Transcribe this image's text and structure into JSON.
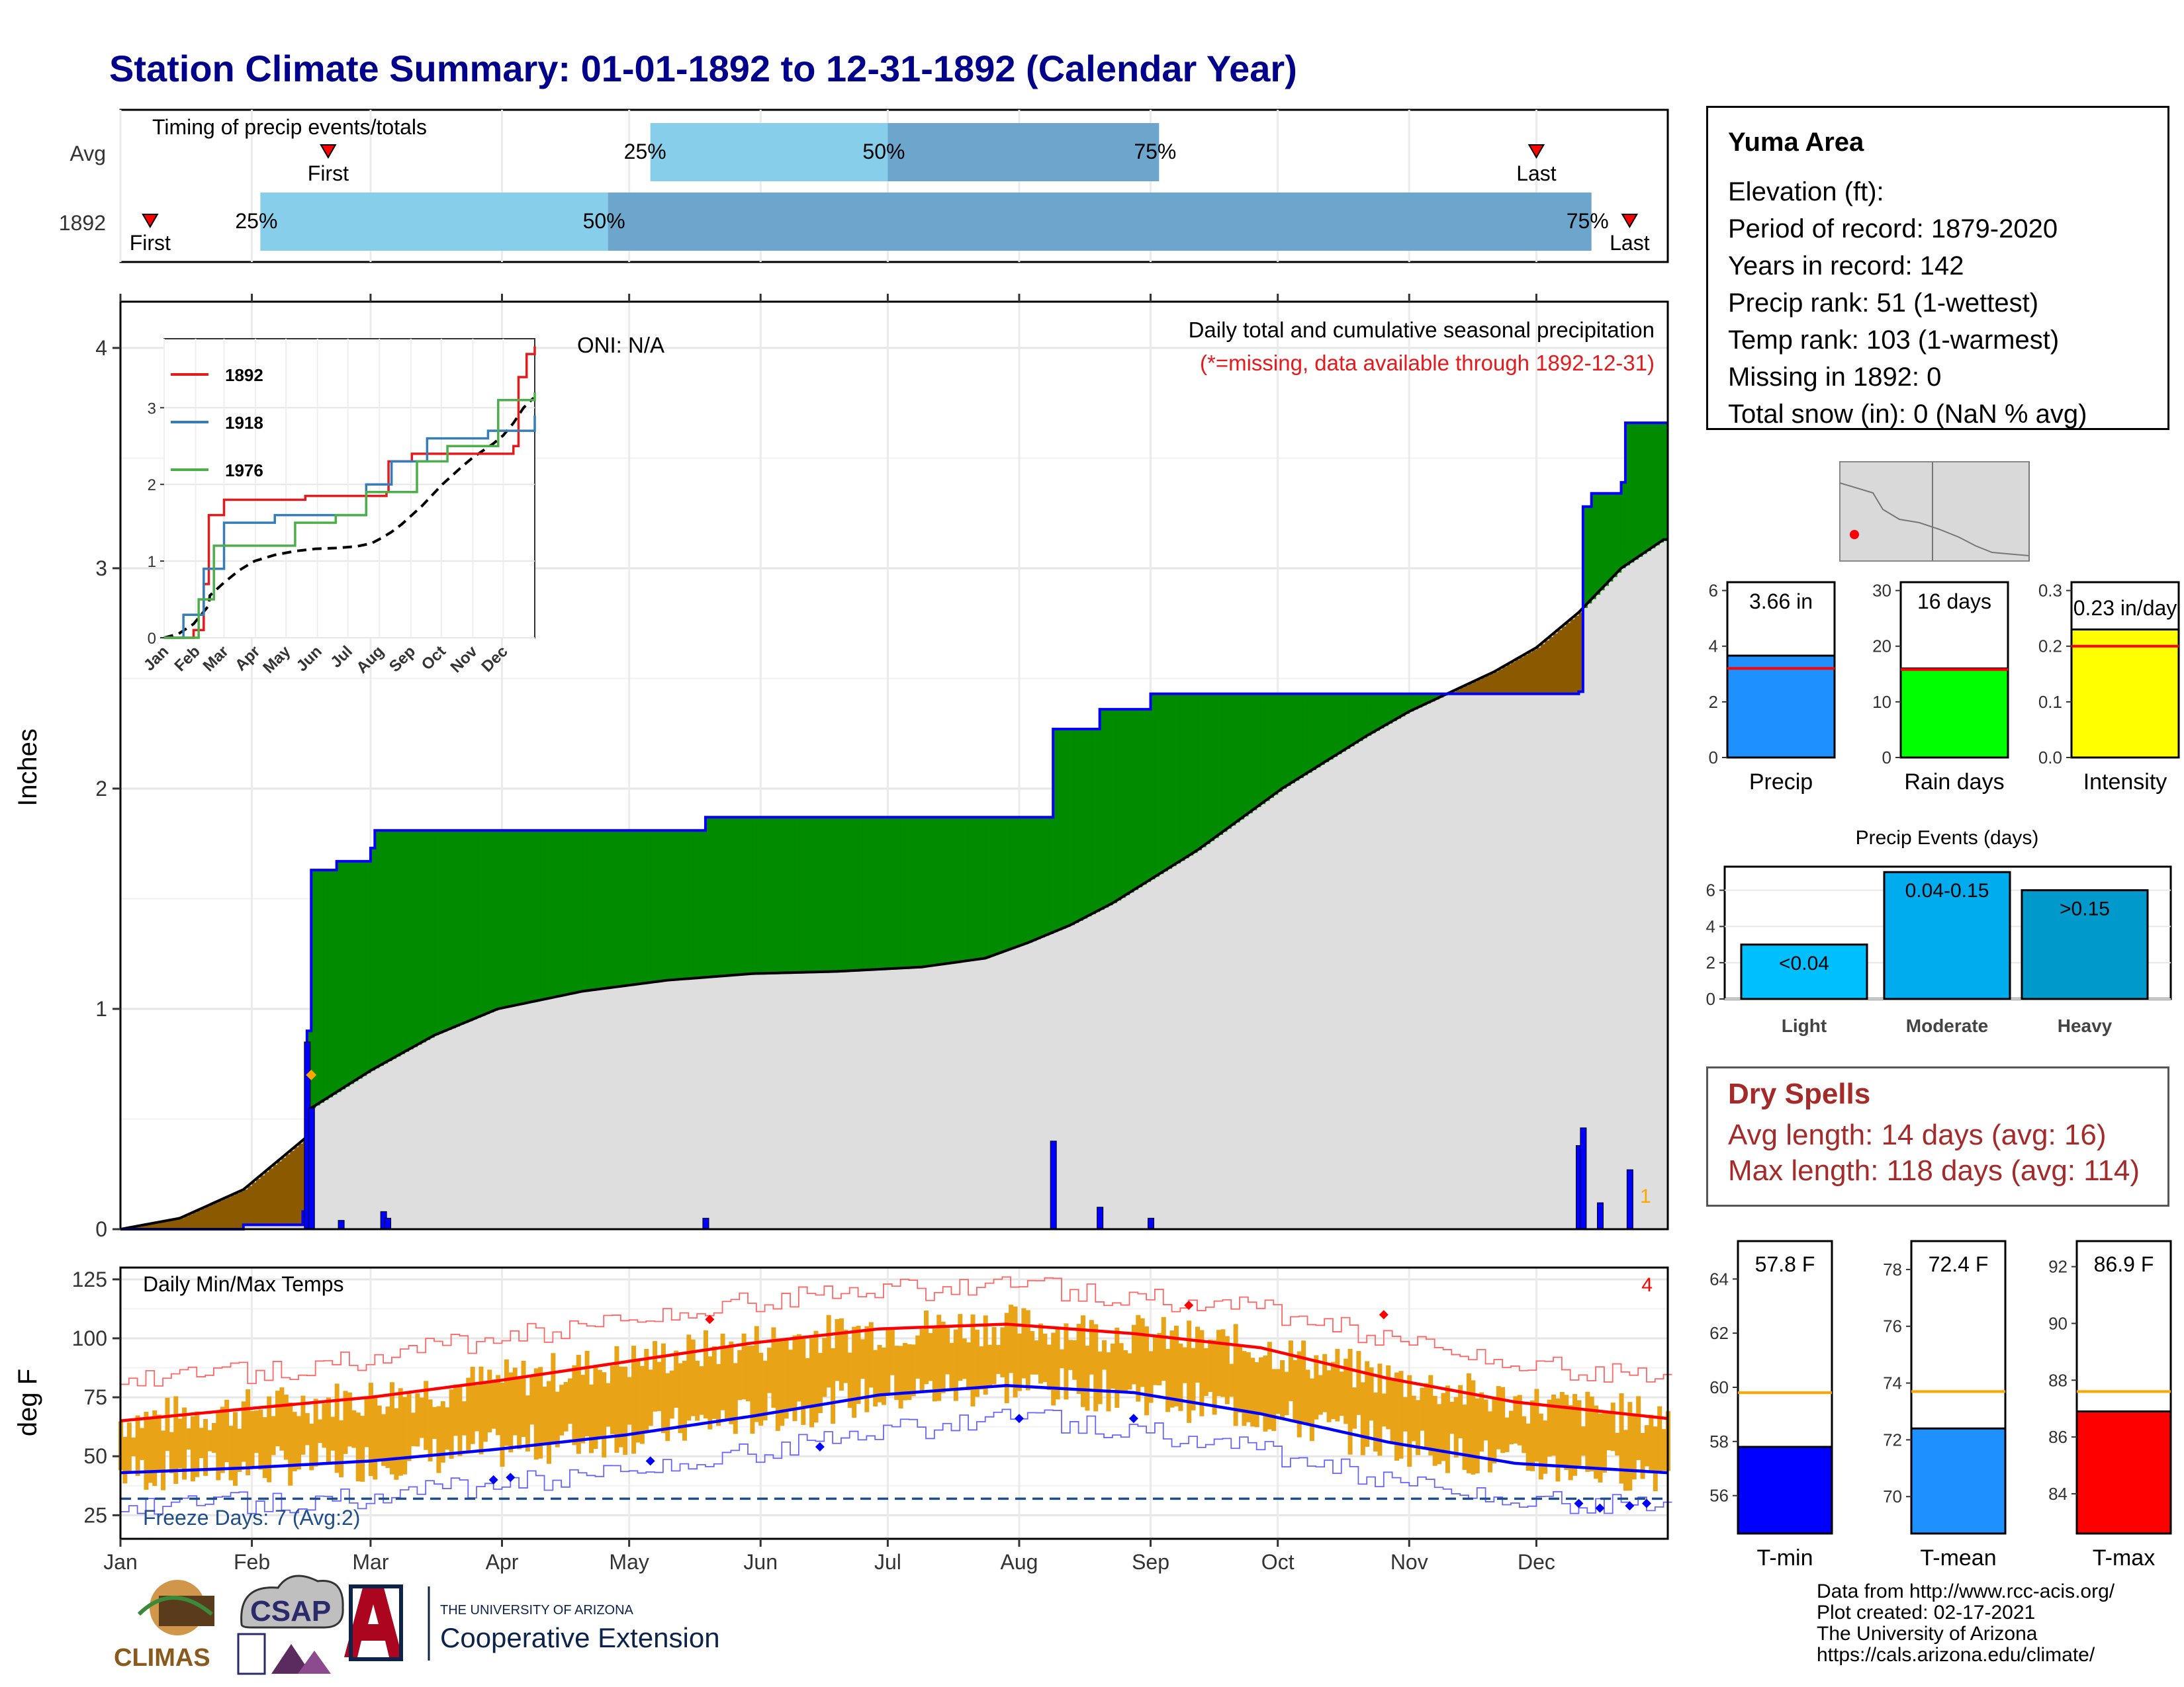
{
  "title": "Station Climate Summary: 01-01-1892 to 12-31-1892 (Calendar Year)",
  "months": [
    "Jan",
    "Feb",
    "Mar",
    "Apr",
    "May",
    "Jun",
    "Jul",
    "Aug",
    "Sep",
    "Oct",
    "Nov",
    "Dec"
  ],
  "timing": {
    "title": "Timing of precip events/totals",
    "rows": [
      {
        "label": "Avg",
        "first_day": 50,
        "p25_day": 126,
        "p50_day": 182,
        "p75_day": 246,
        "last_day": 335,
        "first_text": "First",
        "last_text": "Last",
        "p25_text": "25%",
        "p50_text": "50%",
        "p75_text": "75%"
      },
      {
        "label": "1892",
        "first_day": 8,
        "p25_day": 34,
        "p50_day": 116,
        "p75_day": 348,
        "last_day": 357,
        "first_text": "First",
        "last_text": "Last",
        "p25_text": "25%",
        "p50_text": "50%",
        "p75_text": "75%"
      }
    ]
  },
  "precip_panel": {
    "ylabel": "Inches",
    "yticks": [
      "0",
      "1",
      "2",
      "3",
      "4"
    ],
    "note1": "Daily total and cumulative seasonal precipitation",
    "note2": "(*=missing, data available through 1892-12-31)",
    "oni": "ONI: N/A",
    "corner_label": "1"
  },
  "inset": {
    "yticks": [
      "0",
      "1",
      "2",
      "3"
    ],
    "xticks": [
      "Jan",
      "Feb",
      "Mar",
      "Apr",
      "May",
      "Jun",
      "Jul",
      "Aug",
      "Sep",
      "Oct",
      "Nov",
      "Dec"
    ],
    "legend": [
      {
        "name": "1892",
        "color": "#e41a1c"
      },
      {
        "name": "1918",
        "color": "#377eb8"
      },
      {
        "name": "1976",
        "color": "#4daf4a"
      }
    ]
  },
  "temp_panel": {
    "ylabel": "deg F",
    "label": "Daily Min/Max Temps",
    "yticks": [
      "25",
      "50",
      "75",
      "100",
      "125"
    ],
    "freeze_text": "Freeze Days: 7 (Avg:2)",
    "corner_label": "4"
  },
  "info": {
    "station": "Yuma Area",
    "lines": [
      "Elevation (ft):",
      "Period of record: 1879-2020",
      "Years in record: 142",
      "Precip rank: 51 (1-wettest)",
      "Temp rank: 103 (1-warmest)",
      "Missing in 1892: 0",
      "Total snow (in): 0 (NaN % avg)"
    ]
  },
  "summary_bars": [
    {
      "name": "Precip",
      "value_text": "3.66 in",
      "value": 3.66,
      "avg": 3.2,
      "ymax": 6.3,
      "yticks": [
        "0",
        "2",
        "4",
        "6"
      ],
      "tick_vals": [
        0,
        2,
        4,
        6
      ],
      "color": "#1e90ff"
    },
    {
      "name": "Rain days",
      "value_text": "16 days",
      "value": 16,
      "avg": 15.8,
      "ymax": 31.5,
      "yticks": [
        "0",
        "10",
        "20",
        "30"
      ],
      "tick_vals": [
        0,
        10,
        20,
        30
      ],
      "color": "#00ff00"
    },
    {
      "name": "Intensity",
      "value_text": "0.23 in/day",
      "value": 0.23,
      "avg": 0.2,
      "ymax": 0.315,
      "yticks": [
        "0.0",
        "0.1",
        "0.2",
        "0.3"
      ],
      "tick_vals": [
        0,
        0.1,
        0.2,
        0.3
      ],
      "color": "#ffff00"
    }
  ],
  "events": {
    "title": "Precip Events (days)",
    "yticks": [
      "0",
      "2",
      "4",
      "6"
    ],
    "bars": [
      {
        "name": "Light",
        "range": "<0.04",
        "value": 3,
        "color": "#00bfff"
      },
      {
        "name": "Moderate",
        "range": "0.04-0.15",
        "value": 7,
        "color": "#00acee"
      },
      {
        "name": "Heavy",
        "range": ">0.15",
        "value": 6,
        "color": "#0099cc"
      }
    ]
  },
  "dry_spells": {
    "title": "Dry Spells",
    "avg_line": "Avg length: 14 days (avg: 16)",
    "max_line": "Max length: 118 days (avg: 114)"
  },
  "temp_bars": [
    {
      "name": "T-min",
      "value_text": "57.8 F",
      "value": 57.8,
      "avg": 59.8,
      "ymin": 54.6,
      "ymax": 65.4,
      "yticks": [
        "56",
        "58",
        "60",
        "62",
        "64"
      ],
      "tick_vals": [
        56,
        58,
        60,
        62,
        64
      ],
      "color": "#0000ff"
    },
    {
      "name": "T-mean",
      "value_text": "72.4 F",
      "value": 72.4,
      "avg": 73.7,
      "ymin": 68.7,
      "ymax": 79.0,
      "yticks": [
        "70",
        "72",
        "74",
        "76",
        "78"
      ],
      "tick_vals": [
        70,
        72,
        74,
        76,
        78
      ],
      "color": "#1e90ff"
    },
    {
      "name": "T-max",
      "value_text": "86.9 F",
      "value": 86.9,
      "avg": 87.6,
      "ymin": 82.6,
      "ymax": 92.9,
      "yticks": [
        "84",
        "86",
        "88",
        "90",
        "92"
      ],
      "tick_vals": [
        84,
        86,
        88,
        90,
        92
      ],
      "color": "#ff0000"
    }
  ],
  "credits": [
    "Data from http://www.rcc-acis.org/",
    "Plot created: 02-17-2021",
    "The University of Arizona",
    "https://cals.arizona.edu/climate/"
  ],
  "logos": {
    "climas": "CLIMAS",
    "csap": "CSAP",
    "ua_line1": "THE UNIVERSITY OF ARIZONA",
    "ua_line2": "Cooperative Extension"
  },
  "chart_data": {
    "type": "area",
    "title": "Station Climate Summary: 01-01-1892 to 12-31-1892 (Calendar Year)",
    "ylabel": "Inches",
    "ylim": [
      0,
      4
    ],
    "cumulative_1892": [
      [
        1,
        0
      ],
      [
        30,
        0.02
      ],
      [
        44,
        0.08
      ],
      [
        45,
        0.9
      ],
      [
        46,
        1.63
      ],
      [
        52,
        1.67
      ],
      [
        60,
        1.73
      ],
      [
        61,
        1.81
      ],
      [
        138,
        1.81
      ],
      [
        139,
        1.87
      ],
      [
        220,
        1.87
      ],
      [
        221,
        2.27
      ],
      [
        231,
        2.27
      ],
      [
        232,
        2.36
      ],
      [
        243,
        2.36
      ],
      [
        244,
        2.43
      ],
      [
        344,
        2.43
      ],
      [
        345,
        2.44
      ],
      [
        346,
        3.28
      ],
      [
        348,
        3.34
      ],
      [
        355,
        3.39
      ],
      [
        356,
        3.66
      ],
      [
        366,
        3.66
      ]
    ],
    "cumulative_avg": [
      [
        1,
        0
      ],
      [
        15,
        0.05
      ],
      [
        30,
        0.18
      ],
      [
        45,
        0.42
      ],
      [
        46,
        0.55
      ],
      [
        60,
        0.72
      ],
      [
        75,
        0.88
      ],
      [
        90,
        1.0
      ],
      [
        110,
        1.08
      ],
      [
        130,
        1.13
      ],
      [
        150,
        1.16
      ],
      [
        170,
        1.17
      ],
      [
        190,
        1.19
      ],
      [
        205,
        1.23
      ],
      [
        215,
        1.3
      ],
      [
        225,
        1.38
      ],
      [
        235,
        1.48
      ],
      [
        245,
        1.6
      ],
      [
        255,
        1.72
      ],
      [
        265,
        1.86
      ],
      [
        275,
        2.0
      ],
      [
        285,
        2.12
      ],
      [
        295,
        2.24
      ],
      [
        305,
        2.35
      ],
      [
        315,
        2.44
      ],
      [
        325,
        2.53
      ],
      [
        335,
        2.64
      ],
      [
        345,
        2.8
      ],
      [
        355,
        3.0
      ],
      [
        365,
        3.13
      ]
    ],
    "daily_precip": [
      [
        45,
        0.85
      ],
      [
        46,
        0.55
      ],
      [
        53,
        0.04
      ],
      [
        63,
        0.08
      ],
      [
        64,
        0.05
      ],
      [
        139,
        0.05
      ],
      [
        221,
        0.4
      ],
      [
        232,
        0.1
      ],
      [
        244,
        0.05
      ],
      [
        345,
        0.38
      ],
      [
        346,
        0.46
      ],
      [
        350,
        0.12
      ],
      [
        357,
        0.27
      ]
    ],
    "inset_series": [
      {
        "name": "1892",
        "points": [
          [
            1,
            0
          ],
          [
            30,
            0.1
          ],
          [
            40,
            0.7
          ],
          [
            45,
            1.6
          ],
          [
            60,
            1.8
          ],
          [
            140,
            1.85
          ],
          [
            220,
            1.9
          ],
          [
            222,
            2.3
          ],
          [
            245,
            2.4
          ],
          [
            330,
            2.4
          ],
          [
            345,
            2.5
          ],
          [
            350,
            3.4
          ],
          [
            358,
            3.7
          ],
          [
            366,
            3.8
          ]
        ]
      },
      {
        "name": "1918",
        "points": [
          [
            1,
            0
          ],
          [
            20,
            0.3
          ],
          [
            40,
            0.9
          ],
          [
            60,
            1.5
          ],
          [
            110,
            1.6
          ],
          [
            160,
            1.6
          ],
          [
            200,
            2.0
          ],
          [
            225,
            2.3
          ],
          [
            260,
            2.6
          ],
          [
            320,
            2.7
          ],
          [
            366,
            2.9
          ]
        ]
      },
      {
        "name": "1976",
        "points": [
          [
            1,
            0
          ],
          [
            35,
            0.5
          ],
          [
            50,
            1.2
          ],
          [
            80,
            1.2
          ],
          [
            130,
            1.5
          ],
          [
            170,
            1.6
          ],
          [
            200,
            1.9
          ],
          [
            250,
            2.3
          ],
          [
            280,
            2.5
          ],
          [
            330,
            3.1
          ],
          [
            366,
            3.2
          ]
        ]
      }
    ],
    "temp_avg_max": [
      [
        1,
        65
      ],
      [
        30,
        70
      ],
      [
        60,
        75
      ],
      [
        90,
        82
      ],
      [
        120,
        90
      ],
      [
        150,
        98
      ],
      [
        180,
        104
      ],
      [
        210,
        106
      ],
      [
        240,
        102
      ],
      [
        270,
        96
      ],
      [
        300,
        83
      ],
      [
        330,
        73
      ],
      [
        366,
        66
      ]
    ],
    "temp_avg_min": [
      [
        1,
        43
      ],
      [
        30,
        45
      ],
      [
        60,
        48
      ],
      [
        90,
        53
      ],
      [
        120,
        59
      ],
      [
        150,
        67
      ],
      [
        180,
        76
      ],
      [
        210,
        80
      ],
      [
        240,
        77
      ],
      [
        270,
        68
      ],
      [
        300,
        56
      ],
      [
        330,
        47
      ],
      [
        366,
        43
      ]
    ],
    "temp_record_max": [
      [
        1,
        82
      ],
      [
        30,
        85
      ],
      [
        60,
        92
      ],
      [
        90,
        100
      ],
      [
        120,
        108
      ],
      [
        150,
        116
      ],
      [
        180,
        120
      ],
      [
        210,
        122
      ],
      [
        240,
        118
      ],
      [
        270,
        112
      ],
      [
        300,
        100
      ],
      [
        330,
        90
      ],
      [
        366,
        82
      ]
    ],
    "temp_record_min": [
      [
        1,
        28
      ],
      [
        30,
        30
      ],
      [
        60,
        33
      ],
      [
        90,
        38
      ],
      [
        120,
        44
      ],
      [
        150,
        52
      ],
      [
        180,
        60
      ],
      [
        210,
        66
      ],
      [
        240,
        62
      ],
      [
        270,
        52
      ],
      [
        300,
        40
      ],
      [
        330,
        32
      ],
      [
        366,
        28
      ]
    ],
    "freeze_line": 32
  }
}
